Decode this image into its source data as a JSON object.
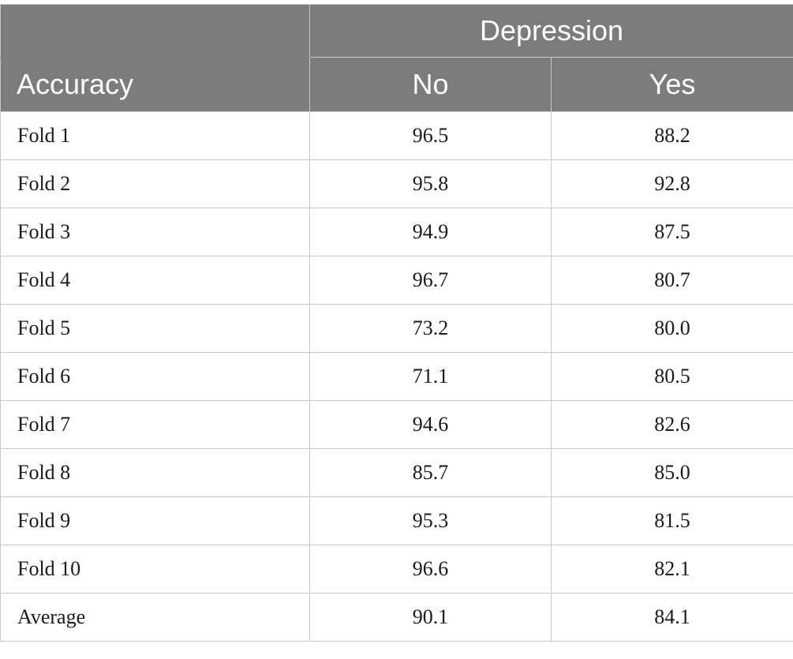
{
  "table": {
    "group_header": "Depression",
    "row_header": "Accuracy",
    "columns": [
      "No",
      "Yes"
    ],
    "rows": [
      {
        "label": "Fold 1",
        "no": "96.5",
        "yes": "88.2"
      },
      {
        "label": "Fold 2",
        "no": "95.8",
        "yes": "92.8"
      },
      {
        "label": "Fold 3",
        "no": "94.9",
        "yes": "87.5"
      },
      {
        "label": "Fold 4",
        "no": "96.7",
        "yes": "80.7"
      },
      {
        "label": "Fold 5",
        "no": "73.2",
        "yes": "80.0"
      },
      {
        "label": "Fold 6",
        "no": "71.1",
        "yes": "80.5"
      },
      {
        "label": "Fold 7",
        "no": "94.6",
        "yes": "82.6"
      },
      {
        "label": "Fold 8",
        "no": "85.7",
        "yes": "85.0"
      },
      {
        "label": "Fold 9",
        "no": "95.3",
        "yes": "81.5"
      },
      {
        "label": "Fold 10",
        "no": "96.6",
        "yes": "82.1"
      },
      {
        "label": "Average",
        "no": "90.1",
        "yes": "84.1"
      }
    ],
    "colors": {
      "header_bg": "#7b7c7b",
      "header_text": "#ffffff",
      "grid": "#c8c8c8"
    }
  }
}
